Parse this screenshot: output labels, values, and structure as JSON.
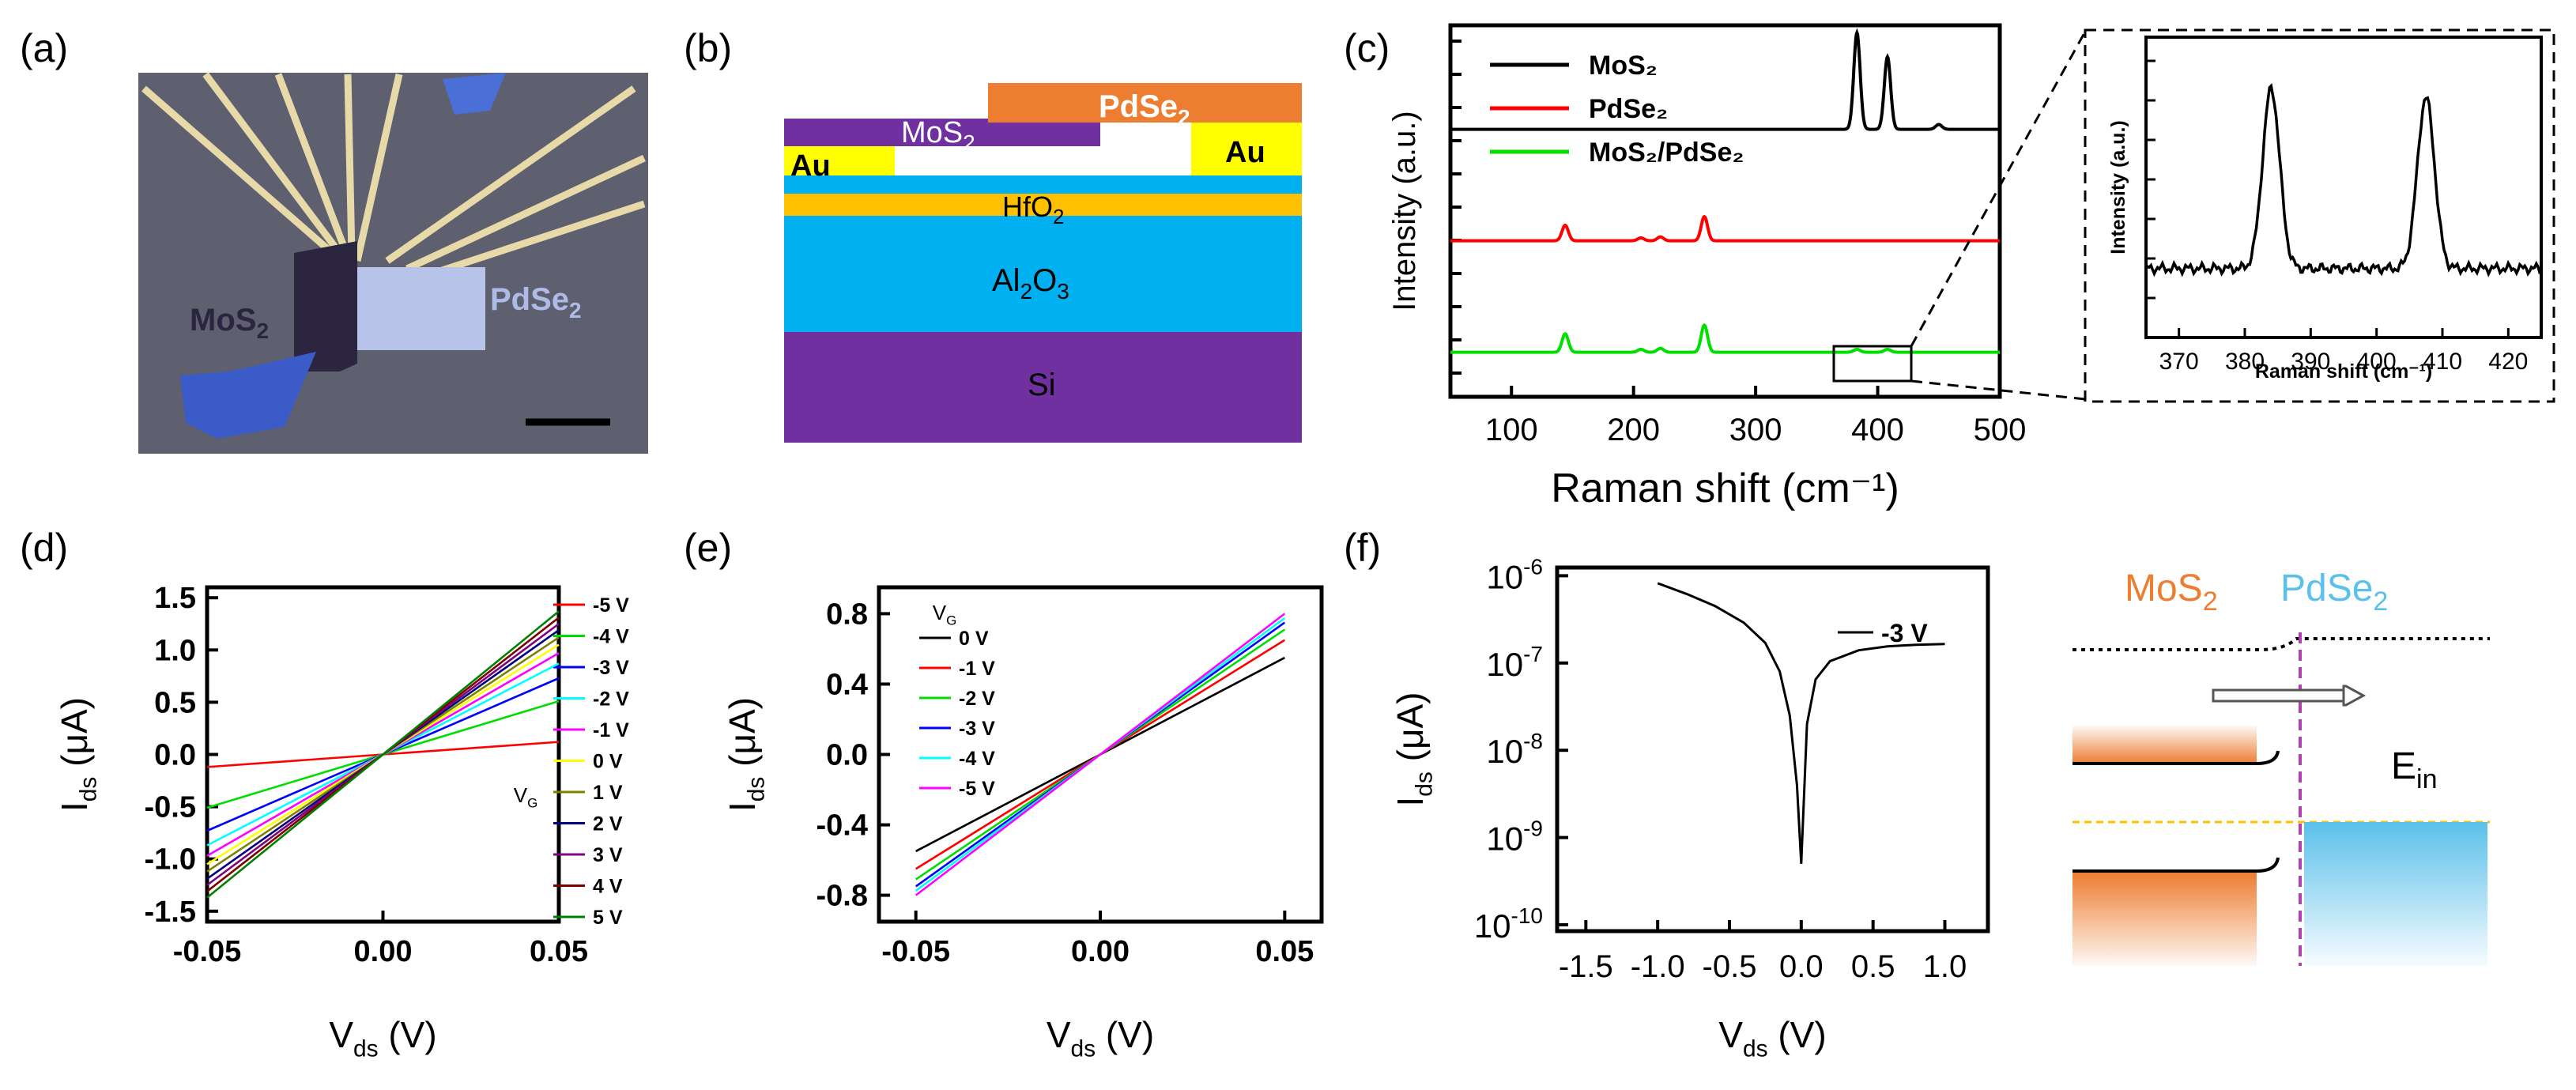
{
  "panels": {
    "a": {
      "label": "(a)",
      "mos2": "MoS",
      "mos2_sub": "2",
      "pdse2": "PdSe",
      "pdse2_sub": "2"
    },
    "b": {
      "label": "(b)",
      "layers": {
        "pdse2": "PdSe",
        "mos2": "MoS",
        "au_left": "Au",
        "au_right": "Au",
        "hfo2": "HfO",
        "al2o3_a": "Al",
        "al2o3_b": "O",
        "al2o3_sub1": "2",
        "al2o3_sub2": "3",
        "si": "Si",
        "sub2": "2"
      }
    },
    "c": {
      "label": "(c)"
    },
    "d": {
      "label": "(d)"
    },
    "e": {
      "label": "(e)"
    },
    "f": {
      "label": "(f)",
      "band": {
        "mos2": "MoS",
        "pdse2": "PdSe",
        "sub2": "2",
        "ein": "E",
        "ein_sub": "in"
      }
    }
  },
  "colors": {
    "mos2": "#ed7d31",
    "pdse2": "#5bc0eb",
    "purple": "#7030a0",
    "orange": "#ed7d31",
    "cyan": "#00b0f0",
    "yellow": "#ffff00",
    "gold": "#ffc000"
  },
  "chart_data": [
    {
      "id": "c",
      "type": "line",
      "title": "",
      "xlabel": "Raman shift (cm⁻¹)",
      "ylabel": "Intensity (a.u.)",
      "xlim": [
        50,
        500
      ],
      "xticks": [
        100,
        200,
        300,
        400,
        500
      ],
      "legend": {
        "position": "top-left",
        "entries": [
          "MoS₂",
          "PdSe₂",
          "MoS₂/PdSe₂"
        ]
      },
      "series": [
        {
          "name": "MoS₂",
          "color": "#000000",
          "baseline": 0.72,
          "peaks": [
            [
              383,
              1.0
            ],
            [
              408,
              0.75
            ],
            [
              450,
              0.05
            ]
          ]
        },
        {
          "name": "PdSe₂",
          "color": "#ff0000",
          "baseline": 0.42,
          "peaks": [
            [
              144,
              0.16
            ],
            [
              206,
              0.03
            ],
            [
              222,
              0.04
            ],
            [
              258,
              0.25
            ]
          ]
        },
        {
          "name": "MoS₂/PdSe₂",
          "color": "#00e000",
          "baseline": 0.12,
          "peaks": [
            [
              144,
              0.19
            ],
            [
              206,
              0.03
            ],
            [
              222,
              0.04
            ],
            [
              258,
              0.28
            ],
            [
              383,
              0.03
            ],
            [
              408,
              0.03
            ]
          ]
        }
      ]
    },
    {
      "id": "c-inset",
      "type": "line",
      "xlabel": "Raman shift (cm⁻¹)",
      "ylabel": "Intensity (a.u.)",
      "xlim": [
        365,
        425
      ],
      "xticks": [
        370,
        380,
        390,
        400,
        410,
        420
      ],
      "series": [
        {
          "name": "MoS₂/PdSe₂",
          "color": "#000000",
          "peaks": [
            [
              384,
              1.0
            ],
            [
              407.5,
              0.95
            ]
          ]
        }
      ]
    },
    {
      "id": "d",
      "type": "line",
      "xlabel": "V_ds (V)",
      "ylabel": "I_ds (μA)",
      "xlim": [
        -0.05,
        0.05
      ],
      "ylim": [
        -1.6,
        1.6
      ],
      "xticks": [
        "-0.05",
        "0.00",
        "0.05"
      ],
      "yticks": [
        "-1.5",
        "-1.0",
        "-0.5",
        "0.0",
        "0.5",
        "1.0",
        "1.5"
      ],
      "legend_title": "V_G",
      "series": [
        {
          "name": "-5 V",
          "color": "#ff0000",
          "slope": 2.4
        },
        {
          "name": "-4 V",
          "color": "#00dd00",
          "slope": 10.2
        },
        {
          "name": "-3 V",
          "color": "#0000ff",
          "slope": 14.6
        },
        {
          "name": "-2 V",
          "color": "#00ffff",
          "slope": 17.4
        },
        {
          "name": "-1 V",
          "color": "#ff00ff",
          "slope": 19.4
        },
        {
          "name": "0 V",
          "color": "#ffff00",
          "slope": 21.0
        },
        {
          "name": "1 V",
          "color": "#808000",
          "slope": 22.4
        },
        {
          "name": "2 V",
          "color": "#000080",
          "slope": 23.8
        },
        {
          "name": "3 V",
          "color": "#800080",
          "slope": 25.0
        },
        {
          "name": "4 V",
          "color": "#800000",
          "slope": 26.2
        },
        {
          "name": "5 V",
          "color": "#008000",
          "slope": 27.4
        }
      ]
    },
    {
      "id": "e",
      "type": "line",
      "xlabel": "V_ds (V)",
      "ylabel": "I_ds (μA)",
      "xlim": [
        -0.06,
        0.06
      ],
      "ylim": [
        -0.95,
        0.95
      ],
      "xticks": [
        "-0.05",
        "0.00",
        "0.05"
      ],
      "yticks": [
        "-0.8",
        "-0.4",
        "0.0",
        "0.4",
        "0.8"
      ],
      "legend_title": "V_G",
      "series": [
        {
          "name": "0 V",
          "color": "#000000",
          "slope": 11.0
        },
        {
          "name": "-1 V",
          "color": "#ff0000",
          "slope": 13.0
        },
        {
          "name": "-2 V",
          "color": "#00dd00",
          "slope": 14.2
        },
        {
          "name": "-3 V",
          "color": "#0000ff",
          "slope": 15.0
        },
        {
          "name": "-4 V",
          "color": "#00ffff",
          "slope": 15.5
        },
        {
          "name": "-5 V",
          "color": "#ff00ff",
          "slope": 16.0
        }
      ]
    },
    {
      "id": "f",
      "type": "line",
      "xlabel": "V_ds (V)",
      "ylabel": "I_ds (μA)",
      "xlim": [
        -1.7,
        1.3
      ],
      "ylim_log10": [
        -10,
        -6
      ],
      "xticks": [
        "-1.5",
        "-1.0",
        "-0.5",
        "0.0",
        "0.5",
        "1.0"
      ],
      "yticks_exp": [
        "-6",
        "-7",
        "-8",
        "-9",
        "-10"
      ],
      "series": [
        {
          "name": "-3 V",
          "color": "#000000",
          "points": [
            [
              -1.0,
              8.2e-07
            ],
            [
              -0.8,
              6.2e-07
            ],
            [
              -0.6,
              4.5e-07
            ],
            [
              -0.4,
              2.9e-07
            ],
            [
              -0.25,
              1.7e-07
            ],
            [
              -0.15,
              8e-08
            ],
            [
              -0.08,
              2.5e-08
            ],
            [
              -0.03,
              4e-09
            ],
            [
              0.0,
              5e-10
            ],
            [
              0.04,
              2e-08
            ],
            [
              0.1,
              6.5e-08
            ],
            [
              0.2,
              1.05e-07
            ],
            [
              0.4,
              1.4e-07
            ],
            [
              0.6,
              1.55e-07
            ],
            [
              0.8,
              1.62e-07
            ],
            [
              1.0,
              1.65e-07
            ]
          ]
        }
      ]
    }
  ]
}
